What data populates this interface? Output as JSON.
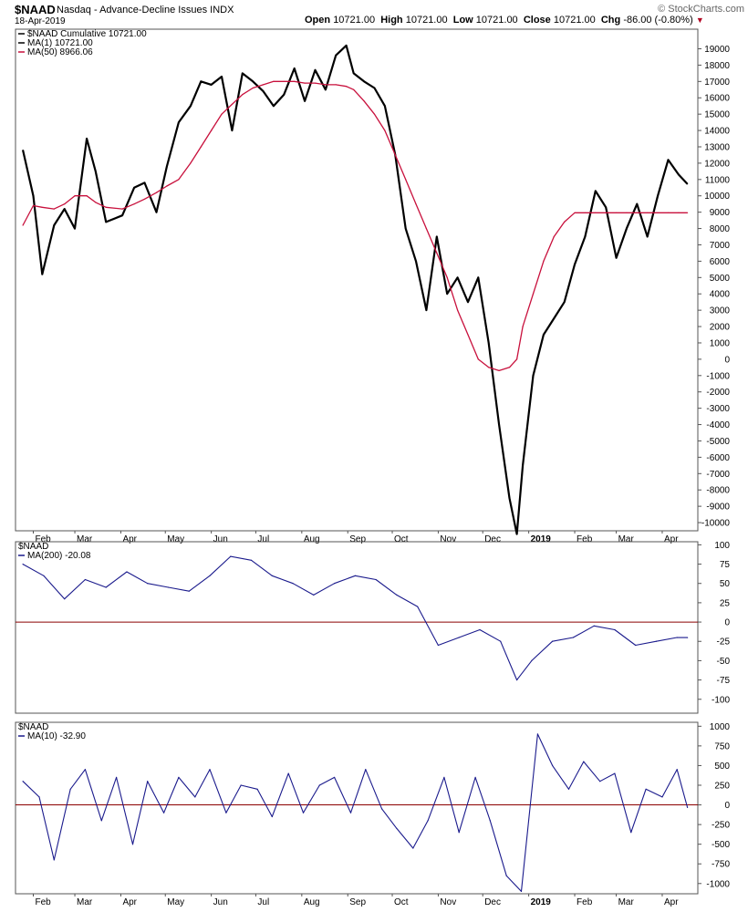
{
  "header": {
    "symbol": "$NAAD",
    "description": "Nasdaq - Advance-Decline Issues  INDX",
    "date": "18-Apr-2019",
    "brand": "© StockCharts.com",
    "open_label": "Open",
    "open": "10721.00",
    "high_label": "High",
    "high": "10721.00",
    "low_label": "Low",
    "low": "10721.00",
    "close_label": "Close",
    "close": "10721.00",
    "chg_label": "Chg",
    "chg": "-86.00 (-0.80%)"
  },
  "colors": {
    "price": "#000000",
    "ma_slow": "#c8103c",
    "indicator": "#1a1a8c",
    "zero_line": "#8b0000",
    "brand": "#666666"
  },
  "months": [
    "Feb",
    "Mar",
    "Apr",
    "May",
    "Jun",
    "Jul",
    "Aug",
    "Sep",
    "Oct",
    "Nov",
    "Dec",
    "2019",
    "Feb",
    "Mar",
    "Apr"
  ],
  "chart_data": [
    {
      "type": "line",
      "legend_placement": "top-left",
      "grid": false,
      "ylim": [
        -10500,
        20200
      ],
      "y_ticks": [
        19000,
        18000,
        17000,
        16000,
        15000,
        14000,
        13000,
        12000,
        11000,
        10000,
        9000,
        8000,
        7000,
        6000,
        5000,
        4000,
        3000,
        2000,
        1000,
        0,
        -1000,
        -2000,
        -3000,
        -4000,
        -5000,
        -6000,
        -7000,
        -8000,
        -9000,
        -10000
      ],
      "x": [
        "2018-01-25",
        "2018-02-01",
        "2018-02-07",
        "2018-02-15",
        "2018-02-22",
        "2018-03-01",
        "2018-03-09",
        "2018-03-15",
        "2018-03-22",
        "2018-04-02",
        "2018-04-10",
        "2018-04-17",
        "2018-04-25",
        "2018-05-02",
        "2018-05-10",
        "2018-05-18",
        "2018-05-25",
        "2018-06-01",
        "2018-06-08",
        "2018-06-15",
        "2018-06-22",
        "2018-06-29",
        "2018-07-06",
        "2018-07-13",
        "2018-07-20",
        "2018-07-27",
        "2018-08-03",
        "2018-08-10",
        "2018-08-17",
        "2018-08-24",
        "2018-08-31",
        "2018-09-05",
        "2018-09-12",
        "2018-09-19",
        "2018-09-26",
        "2018-10-03",
        "2018-10-10",
        "2018-10-17",
        "2018-10-24",
        "2018-10-31",
        "2018-11-07",
        "2018-11-14",
        "2018-11-21",
        "2018-11-28",
        "2018-12-05",
        "2018-12-12",
        "2018-12-19",
        "2018-12-24",
        "2018-12-28",
        "2019-01-04",
        "2019-01-11",
        "2019-01-18",
        "2019-01-25",
        "2019-02-01",
        "2019-02-08",
        "2019-02-15",
        "2019-02-22",
        "2019-03-01",
        "2019-03-08",
        "2019-03-15",
        "2019-03-22",
        "2019-03-29",
        "2019-04-05",
        "2019-04-12",
        "2019-04-18"
      ],
      "series": [
        {
          "name": "$NAAD Cumulative 10721.00",
          "values": [
            12800,
            10000,
            5200,
            8200,
            9200,
            8000,
            13500,
            11500,
            8400,
            8800,
            10500,
            10800,
            9000,
            11800,
            14500,
            15500,
            17000,
            16800,
            17300,
            14000,
            17500,
            17000,
            16400,
            15500,
            16200,
            17800,
            15800,
            17700,
            16500,
            18600,
            19200,
            17500,
            17000,
            16600,
            15500,
            12500,
            8000,
            6000,
            3000,
            7500,
            4000,
            5000,
            3500,
            5000,
            1000,
            -4000,
            -8500,
            -10700,
            -6500,
            -1000,
            1500,
            2500,
            3500,
            5800,
            7500,
            10300,
            9300,
            6200,
            8000,
            9500,
            7500,
            10000,
            12200,
            11300,
            10721
          ]
        },
        {
          "name": "MA(50) 8966.06",
          "values": [
            8200,
            9400,
            9300,
            9200,
            9500,
            10000,
            10000,
            9600,
            9300,
            9200,
            9500,
            9800,
            10200,
            10600,
            11000,
            12000,
            13000,
            14000,
            15000,
            15600,
            16200,
            16600,
            16800,
            17000,
            17000,
            17000,
            16900,
            16900,
            16800,
            16800,
            16700,
            16500,
            15800,
            15000,
            14000,
            12500,
            11000,
            9500,
            8000,
            6500,
            5000,
            3000,
            1500,
            0,
            -500,
            -700,
            -500,
            0,
            2000,
            4000,
            6000,
            7500,
            8400,
            8966,
            8966,
            8966,
            8966,
            8966,
            8966,
            8966,
            8966,
            8966,
            8966,
            8966,
            8966
          ]
        }
      ]
    },
    {
      "type": "line",
      "legend_placement": "top-left",
      "ylim": [
        -118,
        104
      ],
      "y_ticks": [
        100,
        75,
        50,
        25,
        0,
        -25,
        -50,
        -75,
        -100
      ],
      "reference_line": 0,
      "x": [
        "2018-01-25",
        "2018-02-08",
        "2018-02-22",
        "2018-03-08",
        "2018-03-22",
        "2018-04-05",
        "2018-04-19",
        "2018-05-03",
        "2018-05-17",
        "2018-05-31",
        "2018-06-14",
        "2018-06-28",
        "2018-07-12",
        "2018-07-26",
        "2018-08-09",
        "2018-08-23",
        "2018-09-06",
        "2018-09-20",
        "2018-10-04",
        "2018-10-18",
        "2018-11-01",
        "2018-11-15",
        "2018-11-29",
        "2018-12-13",
        "2018-12-24",
        "2019-01-03",
        "2019-01-17",
        "2019-01-31",
        "2019-02-14",
        "2019-02-28",
        "2019-03-14",
        "2019-03-28",
        "2019-04-11",
        "2019-04-18"
      ],
      "series": [
        {
          "name": "$NAAD",
          "values": [
            75,
            60,
            30,
            55,
            45,
            65,
            50,
            45,
            40,
            60,
            85,
            80,
            60,
            50,
            35,
            50,
            60,
            55,
            35,
            20,
            -30,
            -20,
            -10,
            -25,
            -75,
            -50,
            -25,
            -20,
            -5,
            -10,
            -30,
            -25,
            -20,
            -20.08
          ]
        }
      ]
    },
    {
      "type": "line",
      "legend_placement": "top-left",
      "ylim": [
        -1130,
        1050
      ],
      "y_ticks": [
        1000,
        750,
        500,
        250,
        0,
        -250,
        -500,
        -750,
        -1000
      ],
      "reference_line": 0,
      "x": [
        "2018-01-25",
        "2018-02-05",
        "2018-02-15",
        "2018-02-26",
        "2018-03-08",
        "2018-03-19",
        "2018-03-29",
        "2018-04-09",
        "2018-04-19",
        "2018-04-30",
        "2018-05-10",
        "2018-05-21",
        "2018-05-31",
        "2018-06-11",
        "2018-06-21",
        "2018-07-02",
        "2018-07-12",
        "2018-07-23",
        "2018-08-02",
        "2018-08-13",
        "2018-08-23",
        "2018-09-03",
        "2018-09-13",
        "2018-09-24",
        "2018-10-04",
        "2018-10-15",
        "2018-10-25",
        "2018-11-05",
        "2018-11-15",
        "2018-11-26",
        "2018-12-06",
        "2018-12-17",
        "2018-12-27",
        "2019-01-07",
        "2019-01-17",
        "2019-01-28",
        "2019-02-07",
        "2019-02-18",
        "2019-02-28",
        "2019-03-11",
        "2019-03-21",
        "2019-04-01",
        "2019-04-11",
        "2019-04-18"
      ],
      "series": [
        {
          "name": "$NAAD",
          "values": [
            300,
            100,
            -700,
            200,
            450,
            -200,
            350,
            -500,
            300,
            -100,
            350,
            100,
            450,
            -100,
            250,
            200,
            -150,
            400,
            -100,
            250,
            350,
            -100,
            450,
            -50,
            -300,
            -550,
            -200,
            350,
            -350,
            350,
            -200,
            -900,
            -1100,
            900,
            500,
            200,
            550,
            300,
            400,
            -350,
            200,
            100,
            450,
            -32.9
          ]
        }
      ]
    }
  ],
  "legends": {
    "top_line1": "$NAAD Cumulative 10721.00",
    "top_line2": "MA(1) 10721.00",
    "top_line3": "MA(50) 8966.06",
    "mid_line1": "$NAAD",
    "mid_line2": "MA(200) -20.08",
    "bot_line1": "$NAAD",
    "bot_line2": "MA(10) -32.90"
  }
}
